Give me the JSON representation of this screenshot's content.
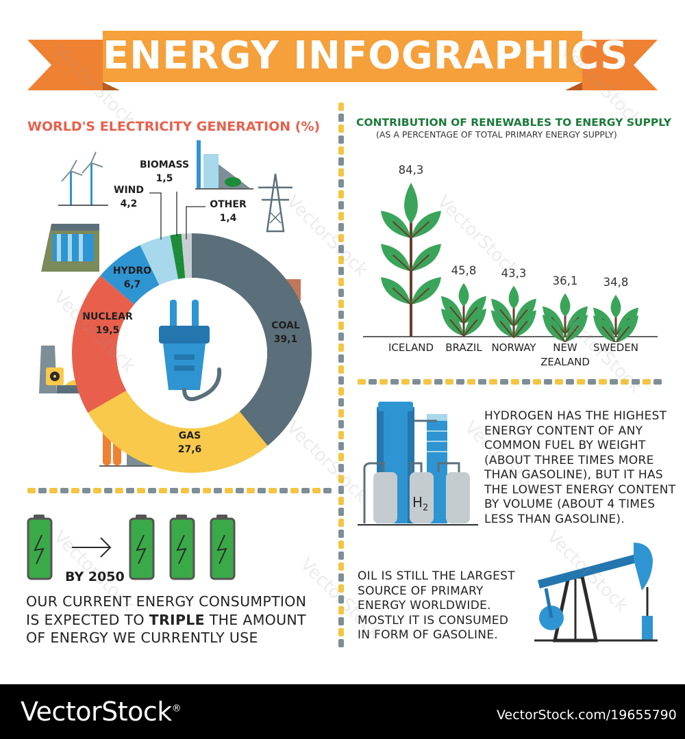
{
  "banner": {
    "title": "ENERGY INFOGRAPHICS"
  },
  "electricity": {
    "title": "WORLD'S ELECTRICITY GENERATION (%)",
    "segments": [
      {
        "name": "COAL",
        "value": "39,1",
        "color": "#5b6f7a"
      },
      {
        "name": "GAS",
        "value": "27,6",
        "color": "#f8c94a"
      },
      {
        "name": "NUCLEAR",
        "value": "19,5",
        "color": "#e8604c"
      },
      {
        "name": "HYDRO",
        "value": "6,7",
        "color": "#2e95d2"
      },
      {
        "name": "WIND",
        "value": "4,2",
        "color": "#a7d8ec"
      },
      {
        "name": "BIOMASS",
        "value": "1,5",
        "color": "#1d8c3a"
      },
      {
        "name": "OTHER",
        "value": "1,4",
        "color": "#c7cfd3"
      }
    ]
  },
  "renewables": {
    "title": "CONTRIBUTION OF RENEWABLES TO ENERGY SUPPLY",
    "subtitle": "(AS A PERCENTAGE OF TOTAL PRIMARY ENERGY SUPPLY)",
    "countries": [
      {
        "name": "ICELAND",
        "value": "84,3"
      },
      {
        "name": "BRAZIL",
        "value": "45,8"
      },
      {
        "name": "NORWAY",
        "value": "43,3"
      },
      {
        "name": "NEW ZEALAND",
        "line1": "NEW",
        "line2": "ZEALAND",
        "value": "36,1"
      },
      {
        "name": "SWEDEN",
        "value": "34,8"
      }
    ]
  },
  "battery": {
    "year_label": "BY 2050",
    "text_line1": "OUR CURRENT ENERGY CONSUMPTION",
    "text_line2_pre": "IS EXPECTED TO ",
    "text_line2_bold": "TRIPLE",
    "text_line2_post": " THE AMOUNT",
    "text_line3": "OF ENERGY WE CURRENTLY USE"
  },
  "hydrogen": {
    "tank_label": "H",
    "tank_sub": "2",
    "lines": [
      "HYDROGEN HAS THE HIGHEST",
      "ENERGY CONTENT OF ANY",
      "COMMON FUEL BY WEIGHT",
      "(ABOUT THREE TIMES MORE",
      "THAN GASOLINE), BUT IT HAS",
      "THE LOWEST ENERGY CONTENT",
      "BY VOLUME (ABOUT 4 TIMES",
      "LESS THAN GASOLINE)."
    ]
  },
  "oil": {
    "lines": [
      "OIL IS STILL THE LARGEST",
      "SOURCE OF PRIMARY",
      "ENERGY WORLDWIDE.",
      "MOSTLY IT IS CONSUMED",
      "IN FORM OF GASOLINE."
    ]
  },
  "watermark": {
    "text": "VectorStock"
  },
  "footer": {
    "brand": "VectorStock",
    "reg": "®",
    "url": "VectorStock.com/19655790"
  },
  "colors": {
    "banner_orange": "#f5a03a",
    "ribbon_dark": "#ef8232",
    "divider_yellow": "#f4c542",
    "divider_gray": "#7d8e96",
    "tree_green": "#3aa55a"
  }
}
